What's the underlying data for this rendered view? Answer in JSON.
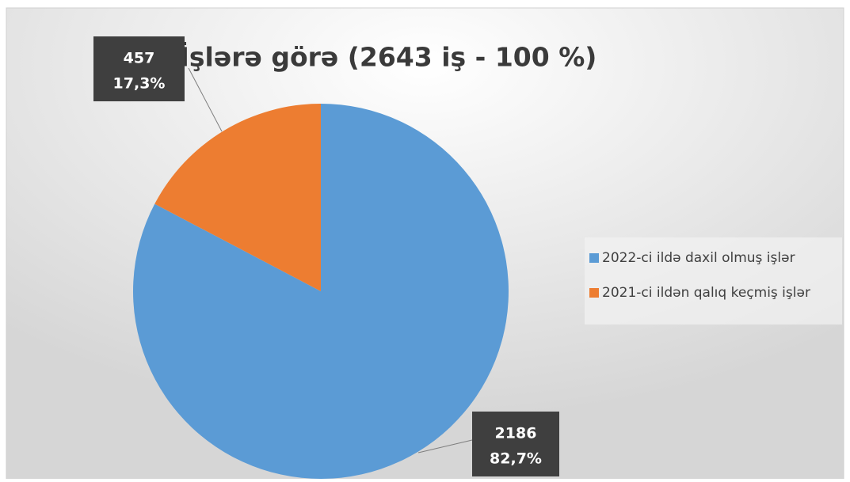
{
  "chart_data": {
    "type": "pie",
    "title": "İşlərə görə (2643 iş - 100 %)",
    "categories": [
      "2022-ci ildə daxil olmuş işlər",
      "2021-ci ildən qalıq keçmiş işlər"
    ],
    "values": [
      2186,
      457
    ],
    "percent_values": [
      82.7,
      17.3
    ],
    "percent_labels": [
      "82,7%",
      "17,3%"
    ],
    "colors": [
      "#5b9bd5",
      "#ed7d31"
    ],
    "legend": "right"
  }
}
